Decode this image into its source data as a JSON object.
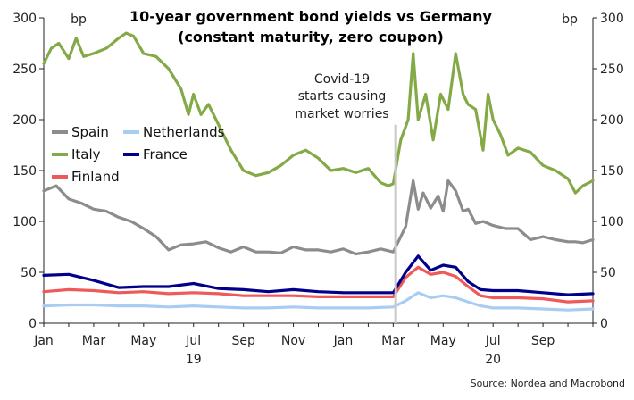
{
  "chart_data": {
    "type": "line",
    "title_line1": "10-year government bond yields vs Germany",
    "title_line2": "(constant maturity, zero coupon)",
    "left_unit": "bp",
    "right_unit": "bp",
    "ylim": [
      0,
      300
    ],
    "yticks": [
      "0",
      "50",
      "100",
      "150",
      "200",
      "250",
      "300"
    ],
    "x_months": [
      "Jan",
      "Mar",
      "May",
      "Jul",
      "Sep",
      "Nov",
      "Jan",
      "Mar",
      "May",
      "Jul",
      "Sep"
    ],
    "x_years": [
      "19",
      "20"
    ],
    "x_range": [
      0,
      22
    ],
    "annotation": [
      "Covid-19",
      "starts causing",
      "market worries"
    ],
    "annotation_x": 14.1,
    "source": "Source: Nordea and Macrobond",
    "series": [
      {
        "name": "Spain",
        "color": "#8c8c8c",
        "x": [
          0,
          0.5,
          1,
          1.5,
          2,
          2.5,
          3,
          3.5,
          4,
          4.5,
          5,
          5.5,
          6,
          6.5,
          7,
          7.5,
          8,
          8.5,
          9,
          9.5,
          10,
          10.5,
          11,
          11.5,
          12,
          12.5,
          13,
          13.5,
          14,
          14.2,
          14.5,
          14.8,
          15,
          15.2,
          15.5,
          15.8,
          16,
          16.2,
          16.5,
          16.8,
          17,
          17.3,
          17.6,
          18,
          18.5,
          19,
          19.5,
          20,
          20.5,
          21,
          21.3,
          21.6,
          22
        ],
        "values": [
          130,
          135,
          122,
          118,
          112,
          110,
          104,
          100,
          93,
          85,
          72,
          77,
          78,
          80,
          74,
          70,
          75,
          70,
          70,
          69,
          75,
          72,
          72,
          70,
          73,
          68,
          70,
          73,
          70,
          80,
          95,
          140,
          112,
          128,
          113,
          125,
          110,
          140,
          130,
          110,
          112,
          98,
          100,
          96,
          93,
          93,
          82,
          85,
          82,
          80,
          80,
          79,
          82
        ]
      },
      {
        "name": "Netherlands",
        "color": "#a9cdf2",
        "x": [
          0,
          1,
          2,
          3,
          4,
          5,
          6,
          7,
          8,
          9,
          10,
          11,
          12,
          13,
          14,
          14.5,
          15,
          15.5,
          16,
          16.5,
          17,
          17.5,
          18,
          19,
          20,
          21,
          22
        ],
        "values": [
          17,
          18,
          18,
          17,
          17,
          16,
          17,
          16,
          15,
          15,
          16,
          15,
          15,
          15,
          16,
          22,
          30,
          25,
          27,
          25,
          21,
          17,
          15,
          15,
          14,
          13,
          14
        ]
      },
      {
        "name": "Italy",
        "color": "#83aa47",
        "x": [
          0,
          0.3,
          0.6,
          1,
          1.3,
          1.6,
          2,
          2.5,
          3,
          3.3,
          3.6,
          4,
          4.5,
          5,
          5.5,
          5.8,
          6,
          6.3,
          6.6,
          7,
          7.5,
          8,
          8.5,
          9,
          9.5,
          10,
          10.5,
          11,
          11.5,
          12,
          12.5,
          13,
          13.5,
          13.8,
          14,
          14.3,
          14.6,
          14.8,
          15,
          15.3,
          15.6,
          15.9,
          16.2,
          16.5,
          16.8,
          17,
          17.3,
          17.6,
          17.8,
          18,
          18.3,
          18.6,
          19,
          19.5,
          20,
          20.5,
          21,
          21.3,
          21.6,
          22
        ],
        "values": [
          255,
          270,
          275,
          260,
          280,
          262,
          265,
          270,
          280,
          285,
          282,
          265,
          262,
          250,
          230,
          205,
          225,
          205,
          215,
          195,
          170,
          150,
          145,
          148,
          155,
          165,
          170,
          162,
          150,
          152,
          148,
          152,
          138,
          135,
          137,
          180,
          200,
          265,
          200,
          225,
          180,
          225,
          210,
          265,
          225,
          215,
          210,
          170,
          225,
          200,
          185,
          165,
          172,
          168,
          155,
          150,
          142,
          128,
          135,
          140
        ]
      },
      {
        "name": "France",
        "color": "#00008b",
        "x": [
          0,
          1,
          2,
          3,
          4,
          5,
          6,
          7,
          8,
          9,
          10,
          11,
          12,
          13,
          14,
          14.5,
          15,
          15.5,
          16,
          16.5,
          17,
          17.5,
          18,
          19,
          20,
          21,
          22
        ],
        "values": [
          47,
          48,
          42,
          35,
          36,
          36,
          39,
          34,
          33,
          31,
          33,
          31,
          30,
          30,
          30,
          50,
          66,
          52,
          57,
          55,
          41,
          33,
          32,
          32,
          30,
          28,
          29
        ]
      },
      {
        "name": "Finland",
        "color": "#ee5a5a",
        "x": [
          0,
          1,
          2,
          3,
          4,
          5,
          6,
          7,
          8,
          9,
          10,
          11,
          12,
          13,
          14,
          14.5,
          15,
          15.5,
          16,
          16.5,
          17,
          17.5,
          18,
          19,
          20,
          21,
          22
        ],
        "values": [
          31,
          33,
          32,
          30,
          31,
          29,
          30,
          29,
          27,
          27,
          27,
          26,
          26,
          26,
          26,
          45,
          55,
          48,
          50,
          46,
          36,
          27,
          25,
          25,
          24,
          21,
          22
        ]
      }
    ]
  }
}
